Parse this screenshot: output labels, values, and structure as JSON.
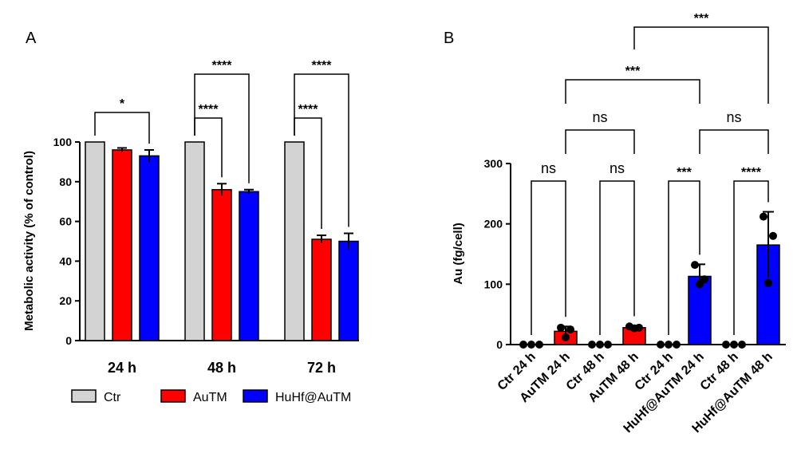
{
  "chart_data": [
    {
      "panel": "A",
      "type": "bar",
      "ylabel": "Metabolic activity (% of control)",
      "ylim": [
        0,
        100
      ],
      "yticks": [
        0,
        20,
        40,
        60,
        80,
        100
      ],
      "categories": [
        "24 h",
        "48 h",
        "72 h"
      ],
      "series": [
        {
          "name": "Ctr",
          "color": "#d3d3d3",
          "values": [
            100,
            100,
            100
          ],
          "errors": [
            0,
            0,
            0
          ]
        },
        {
          "name": "AuTM",
          "color": "#ff0000",
          "values": [
            96,
            76,
            51
          ],
          "errors": [
            1,
            3,
            2
          ]
        },
        {
          "name": "HuHf@AuTM",
          "color": "#0000ff",
          "values": [
            93,
            75,
            50
          ],
          "errors": [
            3,
            1,
            4
          ]
        }
      ],
      "significance": [
        {
          "group": "24 h",
          "from": "Ctr",
          "to": "HuHf@AuTM",
          "label": "*"
        },
        {
          "group": "48 h",
          "from": "Ctr",
          "to": "AuTM",
          "label": "****"
        },
        {
          "group": "48 h",
          "from": "Ctr",
          "to": "HuHf@AuTM",
          "label": "****"
        },
        {
          "group": "72 h",
          "from": "Ctr",
          "to": "AuTM",
          "label": "****"
        },
        {
          "group": "72 h",
          "from": "Ctr",
          "to": "HuHf@AuTM",
          "label": "****"
        }
      ],
      "legend": {
        "position": "bottom",
        "entries": [
          "Ctr",
          "AuTM",
          "HuHf@AuTM"
        ]
      }
    },
    {
      "panel": "B",
      "type": "bar",
      "ylabel": "Au (fg/cell)",
      "ylim": [
        0,
        300
      ],
      "yticks": [
        0,
        100,
        200,
        300
      ],
      "categories": [
        "Ctr 24 h",
        "AuTM 24 h",
        "Ctr 48 h",
        "AuTM 48 h",
        "Ctr 24 h",
        "HuHf@AuTM 24 h",
        "Ctr 48 h",
        "HuHf@AuTM 48 h"
      ],
      "colors": [
        "#d3d3d3",
        "#ff0000",
        "#d3d3d3",
        "#ff0000",
        "#d3d3d3",
        "#0000ff",
        "#d3d3d3",
        "#0000ff"
      ],
      "values": [
        0,
        22,
        0,
        28,
        0,
        113,
        0,
        165
      ],
      "errors": [
        0,
        8,
        0,
        3,
        0,
        20,
        0,
        55
      ],
      "points": [
        [
          0,
          0,
          0
        ],
        [
          28,
          25,
          12
        ],
        [
          0,
          0,
          0
        ],
        [
          30,
          28,
          27
        ],
        [
          0,
          0,
          0
        ],
        [
          132,
          108,
          100
        ],
        [
          0,
          0,
          0
        ],
        [
          212,
          180,
          102
        ]
      ],
      "significance": [
        {
          "from": 0,
          "to": 1,
          "label": "ns",
          "level": 0
        },
        {
          "from": 2,
          "to": 3,
          "label": "ns",
          "level": 0
        },
        {
          "from": 4,
          "to": 5,
          "label": "***",
          "level": 0
        },
        {
          "from": 6,
          "to": 7,
          "label": "****",
          "level": 0
        },
        {
          "from": 1,
          "to": 3,
          "label": "ns",
          "level": 1
        },
        {
          "from": 5,
          "to": 7,
          "label": "ns",
          "level": 1
        },
        {
          "from": 1,
          "to": 5,
          "label": "***",
          "level": 2
        },
        {
          "from": 3,
          "to": 7,
          "label": "***",
          "level": 3
        }
      ]
    }
  ]
}
